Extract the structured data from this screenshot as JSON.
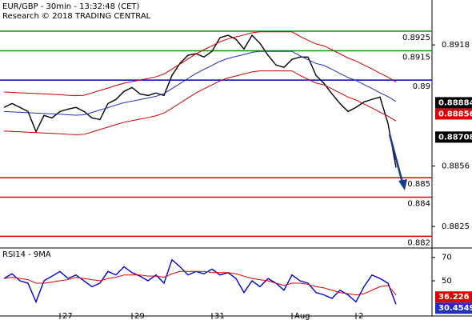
{
  "chart_data": [
    {
      "type": "line",
      "title": "EUR/GBP - 30min - 13:32:48 (CET)",
      "subtitle": "Research © 2018 TRADING CENTRAL",
      "categories": [
        null,
        null,
        null,
        null,
        null,
        null,
        null,
        "27",
        null,
        null,
        null,
        null,
        null,
        null,
        null,
        null,
        "29",
        null,
        null,
        null,
        null,
        null,
        null,
        null,
        null,
        null,
        "31",
        null,
        null,
        null,
        null,
        null,
        null,
        null,
        null,
        null,
        "Aug",
        null,
        null,
        null,
        null,
        null,
        null,
        null,
        "2",
        null,
        null,
        null,
        null,
        null
      ],
      "ylim": [
        0.8814,
        0.8941
      ],
      "yticks": [
        0.8918,
        0.8856,
        0.8825
      ],
      "series": [
        {
          "color": "#000000",
          "values": [
            0.8886,
            0.8888,
            0.8886,
            0.88839,
            0.88736,
            0.88819,
            0.88806,
            0.88839,
            0.88851,
            0.8886,
            0.88839,
            0.88806,
            0.88798,
            0.8888,
            0.88901,
            0.88942,
            0.88962,
            0.88929,
            0.88921,
            0.88934,
            0.88921,
            0.89024,
            0.89086,
            0.89127,
            0.89135,
            0.89118,
            0.89147,
            0.89217,
            0.89229,
            0.89209,
            0.89159,
            0.89229,
            0.89188,
            0.89127,
            0.89077,
            0.89065,
            0.89106,
            0.89118,
            0.89118,
            0.89024,
            0.88983,
            0.88929,
            0.8888,
            0.88839,
            0.8886,
            0.88888,
            0.88901,
            0.88913,
            0.88778,
            0.88552
          ]
        },
        {
          "color": "#1f2fbf",
          "values": [
            0.88839,
            0.88837,
            0.88835,
            0.88833,
            0.88831,
            0.88829,
            0.88827,
            0.88825,
            0.88822,
            0.8882,
            0.88822,
            0.88834,
            0.88847,
            0.88859,
            0.88872,
            0.88884,
            0.88892,
            0.889,
            0.88908,
            0.88917,
            0.88931,
            0.88956,
            0.88982,
            0.89008,
            0.89034,
            0.89055,
            0.89075,
            0.89096,
            0.89111,
            0.89121,
            0.89131,
            0.89142,
            0.89147,
            0.89147,
            0.89147,
            0.89147,
            0.89147,
            0.89124,
            0.89104,
            0.89085,
            0.89075,
            0.89055,
            0.89034,
            0.89013,
            0.88998,
            0.88977,
            0.88957,
            0.88935,
            0.88915,
            0.8889
          ]
        },
        {
          "color": "#cc0000",
          "values": [
            0.88939,
            0.88937,
            0.88935,
            0.88933,
            0.88931,
            0.88929,
            0.88927,
            0.88925,
            0.88922,
            0.8892,
            0.88922,
            0.88934,
            0.88947,
            0.88959,
            0.88972,
            0.88984,
            0.88992,
            0.89,
            0.89008,
            0.89017,
            0.89031,
            0.89056,
            0.89082,
            0.89108,
            0.89134,
            0.89155,
            0.89175,
            0.89196,
            0.89211,
            0.89221,
            0.89231,
            0.89242,
            0.89247,
            0.89247,
            0.89247,
            0.89247,
            0.89247,
            0.89224,
            0.89204,
            0.89185,
            0.89175,
            0.89155,
            0.89134,
            0.89113,
            0.89098,
            0.89077,
            0.89057,
            0.89035,
            0.89015,
            0.8899
          ]
        },
        {
          "color": "#cc0000",
          "values": [
            0.88739,
            0.88737,
            0.88735,
            0.88733,
            0.88731,
            0.88729,
            0.88727,
            0.88725,
            0.88722,
            0.8872,
            0.88722,
            0.88734,
            0.88747,
            0.88759,
            0.88772,
            0.88784,
            0.88792,
            0.888,
            0.88808,
            0.88817,
            0.88831,
            0.88856,
            0.88882,
            0.88908,
            0.88934,
            0.88955,
            0.88975,
            0.88996,
            0.89011,
            0.89021,
            0.89031,
            0.89042,
            0.89047,
            0.89047,
            0.89047,
            0.89047,
            0.89047,
            0.89024,
            0.89004,
            0.88985,
            0.88975,
            0.88955,
            0.88934,
            0.88913,
            0.88898,
            0.88877,
            0.88857,
            0.88835,
            0.88815,
            0.8879
          ]
        }
      ],
      "levels": [
        {
          "value": 0.8925,
          "color": "#009900"
        },
        {
          "value": 0.8915,
          "color": "#009900"
        },
        {
          "value": 0.89,
          "color": "#0000cc"
        },
        {
          "value": 0.885,
          "color": "#dd0000"
        },
        {
          "value": 0.884,
          "color": "#dd0000"
        },
        {
          "value": 0.882,
          "color": "#dd0000"
        }
      ],
      "markers": [
        {
          "value": 0.88884,
          "color": "#000000"
        },
        {
          "value": 0.88856,
          "color": "#dd0000"
        },
        {
          "value": 0.88708,
          "color": "#000000"
        }
      ]
    },
    {
      "type": "line",
      "title": "RSI14 - 9MA",
      "ylim": [
        20,
        78
      ],
      "yticks": [
        70,
        50
      ],
      "series": [
        {
          "color": "#0000cc",
          "values": [
            52,
            56,
            50,
            48,
            32,
            50,
            54,
            58,
            52,
            55,
            50,
            45,
            48,
            58,
            55,
            62,
            57,
            54,
            50,
            55,
            48,
            68,
            62,
            55,
            58,
            56,
            60,
            55,
            57,
            52,
            40,
            50,
            45,
            52,
            48,
            42,
            55,
            50,
            48,
            40,
            38,
            35,
            42,
            38,
            32,
            45,
            55,
            52,
            48,
            30
          ]
        },
        {
          "color": "#dd0000",
          "values": [
            52,
            53,
            52,
            51,
            48,
            48,
            49,
            50,
            51,
            53,
            52,
            51,
            50,
            52,
            53,
            55,
            55,
            55,
            54,
            54,
            53,
            56,
            58,
            58,
            58,
            58,
            57,
            57,
            57,
            56,
            54,
            52,
            51,
            50,
            48,
            46,
            48,
            48,
            47,
            45,
            44,
            42,
            40,
            39,
            38,
            39,
            42,
            45,
            46,
            38
          ]
        }
      ],
      "markers": [
        {
          "value": 36.226,
          "color": "#dd0000"
        },
        {
          "value": 30.4549,
          "color": "#1f2fbf"
        }
      ]
    }
  ]
}
